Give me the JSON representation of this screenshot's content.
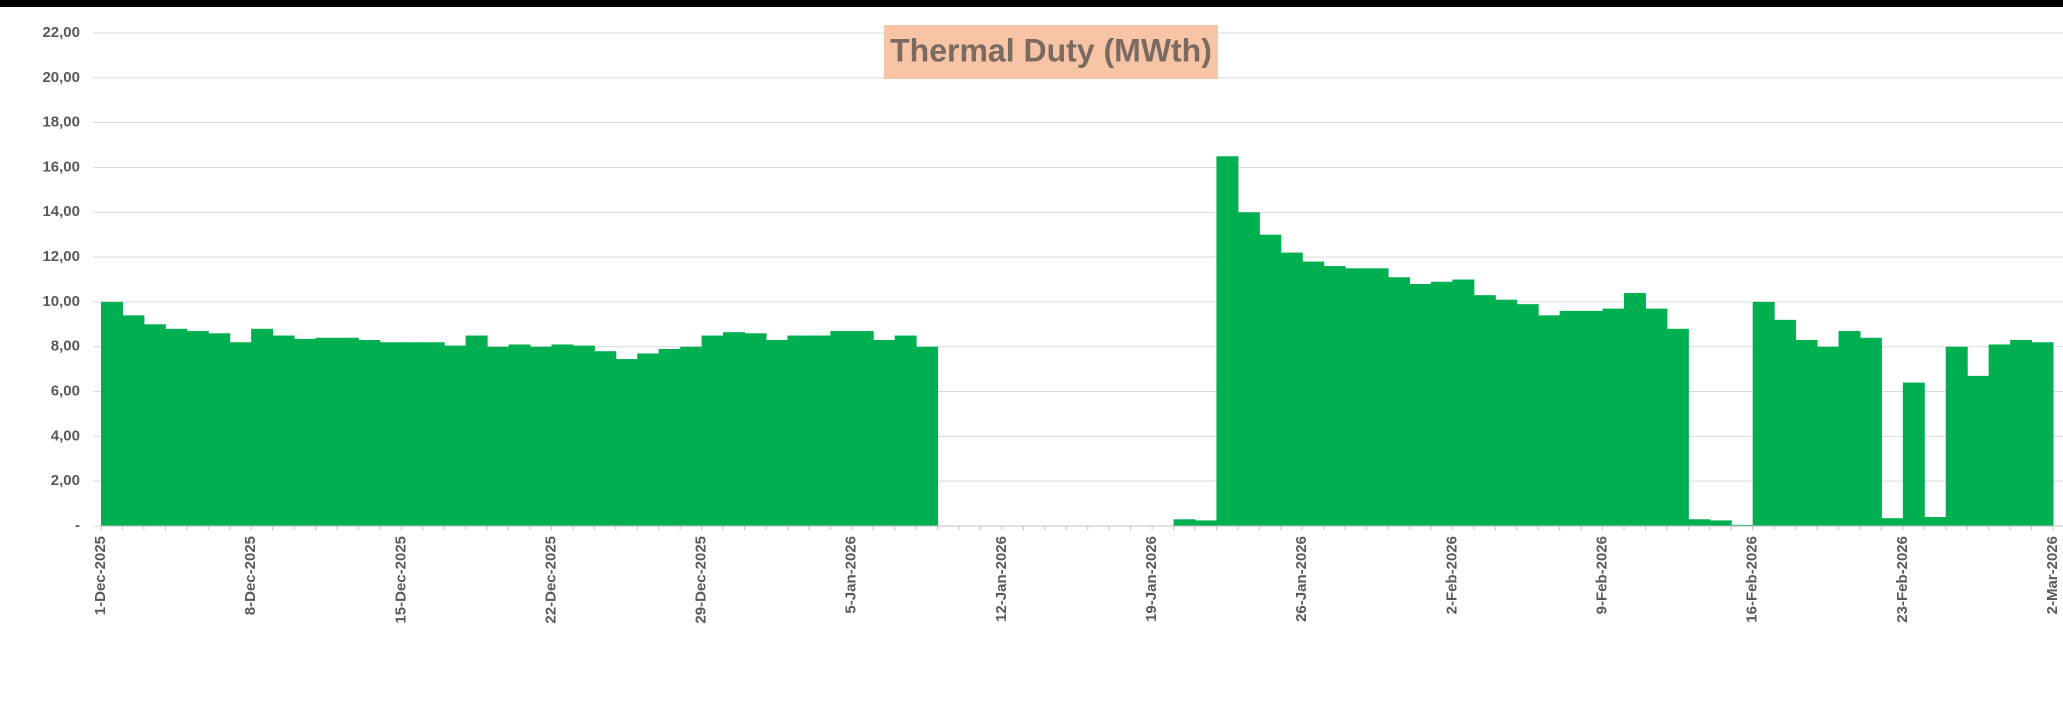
{
  "chart_data": {
    "type": "bar",
    "title": "Thermal Duty (MWth)",
    "categories": [
      "1-Dec-2025",
      null,
      null,
      null,
      null,
      null,
      null,
      "8-Dec-2025",
      null,
      null,
      null,
      null,
      null,
      null,
      "15-Dec-2025",
      null,
      null,
      null,
      null,
      null,
      null,
      "22-Dec-2025",
      null,
      null,
      null,
      null,
      null,
      null,
      "29-Dec-2025",
      null,
      null,
      null,
      null,
      null,
      null,
      "5-Jan-2026",
      null,
      null,
      null,
      null,
      null,
      null,
      "12-Jan-2026",
      null,
      null,
      null,
      null,
      null,
      null,
      "19-Jan-2026",
      null,
      null,
      null,
      null,
      null,
      null,
      "26-Jan-2026",
      null,
      null,
      null,
      null,
      null,
      null,
      "2-Feb-2026",
      null,
      null,
      null,
      null,
      null,
      null,
      "9-Feb-2026",
      null,
      null,
      null,
      null,
      null,
      null,
      "16-Feb-2026",
      null,
      null,
      null,
      null,
      null,
      null,
      "23-Feb-2026",
      null,
      null,
      null,
      null,
      null,
      null,
      "2-Mar-2026"
    ],
    "values": [
      10.0,
      9.4,
      9.0,
      8.8,
      8.7,
      8.6,
      8.2,
      8.8,
      8.5,
      8.35,
      8.4,
      8.4,
      8.3,
      8.2,
      8.2,
      8.2,
      8.05,
      8.5,
      8.0,
      8.1,
      8.0,
      8.1,
      8.05,
      7.8,
      7.45,
      7.7,
      7.9,
      8.0,
      8.5,
      8.65,
      8.6,
      8.3,
      8.5,
      8.5,
      8.7,
      8.7,
      8.3,
      8.5,
      8.0,
      0,
      0,
      0,
      0,
      0,
      0,
      0,
      0,
      0,
      0,
      0,
      0.3,
      0.25,
      16.5,
      14.0,
      13.0,
      12.2,
      11.8,
      11.6,
      11.5,
      11.5,
      11.1,
      10.8,
      10.9,
      11.0,
      10.3,
      10.1,
      9.9,
      9.4,
      9.6,
      9.6,
      9.7,
      10.4,
      9.7,
      8.8,
      0.3,
      0.25,
      0.05,
      10.0,
      9.2,
      8.3,
      8.0,
      8.7,
      8.4,
      0.35,
      6.4,
      0.4,
      8.0,
      6.7,
      8.1,
      8.3,
      8.2,
      null
    ],
    "color": "#00b050",
    "ylim": [
      0,
      22
    ],
    "yticks": [
      {
        "value": 0,
        "label": "-"
      },
      {
        "value": 2,
        "label": "2,00"
      },
      {
        "value": 4,
        "label": "4,00"
      },
      {
        "value": 6,
        "label": "6,00"
      },
      {
        "value": 8,
        "label": "8,00"
      },
      {
        "value": 10,
        "label": "10,00"
      },
      {
        "value": 12,
        "label": "12,00"
      },
      {
        "value": 14,
        "label": "14,00"
      },
      {
        "value": 16,
        "label": "16,00"
      },
      {
        "value": 18,
        "label": "18,00"
      },
      {
        "value": 20,
        "label": "20,00"
      },
      {
        "value": 22,
        "label": "22,00"
      }
    ],
    "grid": true
  }
}
